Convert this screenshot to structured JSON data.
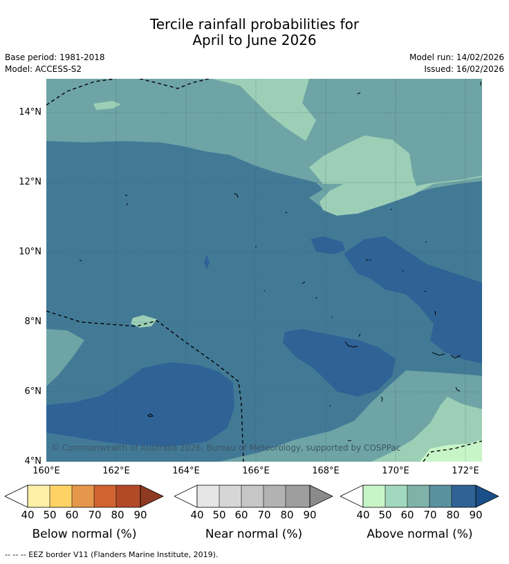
{
  "title_line1": "Tercile rainfall probabilities for",
  "title_line2": "April to June 2026",
  "base_period": "Base period: 1981-2018",
  "model": "Model: ACCESS-S2",
  "model_run": "Model run: 14/02/2026",
  "issued": "Issued: 16/02/2026",
  "lat_labels": [
    "14°N",
    "12°N",
    "10°N",
    "8°N",
    "6°N",
    "4°N"
  ],
  "lon_labels": [
    "160°E",
    "162°E",
    "164°E",
    "166°E",
    "168°E",
    "170°E",
    "172°E"
  ],
  "copyright": "© Commonwealth of Australia 2026, Bureau of Meteorology, supported by COSPPac",
  "colors": {
    "above_40_50": "#c8f5c8",
    "above_50_60": "#9ccfb6",
    "above_60_70": "#6ea4a5",
    "above_70_80": "#427a96",
    "above_80_90": "#2f6396",
    "above_90": "#1a4f8a",
    "below": [
      "#fff0a8",
      "#ffd266",
      "#e5984c",
      "#d0632f",
      "#b24a28",
      "#8f3a22"
    ],
    "near": [
      "#e6e6e6",
      "#d6d6d6",
      "#c6c6c6",
      "#b2b2b2",
      "#9e9e9e",
      "#8a8a8a"
    ],
    "above": [
      "#c8f5c8",
      "#a2d8bf",
      "#7fb3a9",
      "#5a91a0",
      "#2f6396",
      "#1a4f8a"
    ]
  },
  "colorbars": [
    {
      "title": "Below normal (%)",
      "ticks": [
        "40",
        "50",
        "60",
        "70",
        "80",
        "90"
      ]
    },
    {
      "title": "Near normal (%)",
      "ticks": [
        "40",
        "50",
        "60",
        "70",
        "80",
        "90"
      ]
    },
    {
      "title": "Above normal (%)",
      "ticks": [
        "40",
        "50",
        "60",
        "70",
        "80",
        "90"
      ]
    }
  ],
  "footnote": "-- -- -- EEZ border V11 (Flanders Marine Institute, 2019)."
}
